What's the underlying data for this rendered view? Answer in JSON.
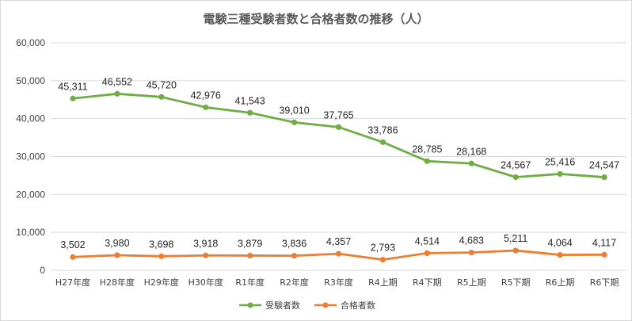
{
  "chart_data": {
    "type": "line",
    "title": "電験三種受験者数と合格者数の推移（人）",
    "categories": [
      "H27年度",
      "H28年度",
      "H29年度",
      "H30年度",
      "R1年度",
      "R2年度",
      "R3年度",
      "R4上期",
      "R4下期",
      "R5上期",
      "R5下期",
      "R6上期",
      "R6下期"
    ],
    "series": [
      {
        "name": "受験者数",
        "color": "#70ad47",
        "values": [
          45311,
          46552,
          45720,
          42976,
          41543,
          39010,
          37765,
          33786,
          28785,
          28168,
          24567,
          25416,
          24547
        ],
        "labels": [
          "45,311",
          "46,552",
          "45,720",
          "42,976",
          "41,543",
          "39,010",
          "37,765",
          "33,786",
          "28,785",
          "28,168",
          "24,567",
          "25,416",
          "24,547"
        ]
      },
      {
        "name": "合格者数",
        "color": "#ed7d31",
        "values": [
          3502,
          3980,
          3698,
          3918,
          3879,
          3836,
          4357,
          2793,
          4514,
          4683,
          5211,
          4064,
          4117
        ],
        "labels": [
          "3,502",
          "3,980",
          "3,698",
          "3,918",
          "3,879",
          "3,836",
          "4,357",
          "2,793",
          "4,514",
          "4,683",
          "5,211",
          "4,064",
          "4,117"
        ]
      }
    ],
    "ylim": [
      0,
      60000
    ],
    "yticks": [
      0,
      10000,
      20000,
      30000,
      40000,
      50000,
      60000
    ],
    "ytick_labels": [
      "0",
      "10,000",
      "20,000",
      "30,000",
      "40,000",
      "50,000",
      "60,000"
    ],
    "grid": true,
    "legend_position": "bottom"
  }
}
